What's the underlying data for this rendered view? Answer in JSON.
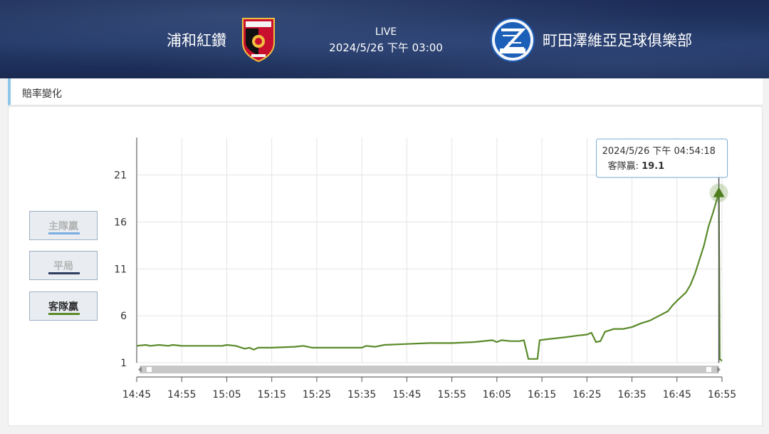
{
  "header": {
    "home_team": "浦和紅鑽",
    "away_team": "町田澤維亞足球俱樂部",
    "status": "LIVE",
    "match_time": "2024/5/26 下午 03:00",
    "home_logo_icon": "urawa-reds-crest-icon",
    "away_logo_icon": "machida-zelvia-crest-icon"
  },
  "panel": {
    "title": "賠率變化"
  },
  "legend": {
    "home": {
      "label": "主隊贏",
      "color": "#7aaee0",
      "active": false
    },
    "draw": {
      "label": "平局",
      "color": "#2e3d5c",
      "active": false
    },
    "away": {
      "label": "客隊贏",
      "color": "#5a8a2a",
      "active": true
    }
  },
  "tooltip": {
    "time": "2024/5/26 下午 04:54:18",
    "series": "客隊贏",
    "value": "19.1"
  },
  "chart_data": {
    "type": "line",
    "title": "",
    "xlabel": "",
    "ylabel": "",
    "x_ticks": [
      "14:45",
      "14:55",
      "15:05",
      "15:15",
      "15:25",
      "15:35",
      "15:45",
      "15:55",
      "16:05",
      "16:15",
      "16:25",
      "16:35",
      "16:45",
      "16:55"
    ],
    "y_ticks": [
      1,
      6,
      11,
      16,
      21
    ],
    "ylim": [
      1,
      25
    ],
    "xlim": [
      "14:45",
      "16:55"
    ],
    "grid": true,
    "series": [
      {
        "name": "客隊贏",
        "color": "#5a8a2a",
        "points": [
          [
            "14:45",
            2.8
          ],
          [
            "14:47",
            2.9
          ],
          [
            "14:48",
            2.8
          ],
          [
            "14:50",
            2.9
          ],
          [
            "14:52",
            2.8
          ],
          [
            "14:53",
            2.9
          ],
          [
            "14:55",
            2.8
          ],
          [
            "15:00",
            2.8
          ],
          [
            "15:04",
            2.8
          ],
          [
            "15:05",
            2.9
          ],
          [
            "15:07",
            2.8
          ],
          [
            "15:09",
            2.5
          ],
          [
            "15:10",
            2.6
          ],
          [
            "15:11",
            2.4
          ],
          [
            "15:12",
            2.6
          ],
          [
            "15:15",
            2.6
          ],
          [
            "15:20",
            2.7
          ],
          [
            "15:22",
            2.8
          ],
          [
            "15:24",
            2.6
          ],
          [
            "15:30",
            2.6
          ],
          [
            "15:35",
            2.6
          ],
          [
            "15:36",
            2.8
          ],
          [
            "15:38",
            2.7
          ],
          [
            "15:40",
            2.9
          ],
          [
            "15:45",
            3.0
          ],
          [
            "15:50",
            3.1
          ],
          [
            "15:55",
            3.1
          ],
          [
            "16:00",
            3.2
          ],
          [
            "16:04",
            3.4
          ],
          [
            "16:05",
            3.2
          ],
          [
            "16:06",
            3.4
          ],
          [
            "16:08",
            3.3
          ],
          [
            "16:10",
            3.3
          ],
          [
            "16:11",
            3.4
          ],
          [
            "16:12",
            1.4
          ],
          [
            "16:14",
            1.4
          ],
          [
            "16:14.5",
            3.4
          ],
          [
            "16:16",
            3.5
          ],
          [
            "16:20",
            3.7
          ],
          [
            "16:23",
            3.9
          ],
          [
            "16:25",
            4.0
          ],
          [
            "16:26",
            4.2
          ],
          [
            "16:27",
            3.2
          ],
          [
            "16:28",
            3.3
          ],
          [
            "16:29",
            4.3
          ],
          [
            "16:31",
            4.6
          ],
          [
            "16:33",
            4.6
          ],
          [
            "16:35",
            4.8
          ],
          [
            "16:37",
            5.2
          ],
          [
            "16:39",
            5.5
          ],
          [
            "16:41",
            6.0
          ],
          [
            "16:43",
            6.5
          ],
          [
            "16:44",
            7.1
          ],
          [
            "16:45",
            7.6
          ],
          [
            "16:47",
            8.5
          ],
          [
            "16:48",
            9.3
          ],
          [
            "16:49",
            10.5
          ],
          [
            "16:50",
            12.0
          ],
          [
            "16:51",
            13.5
          ],
          [
            "16:52",
            15.5
          ],
          [
            "16:53",
            17.0
          ],
          [
            "16:54:18",
            19.1
          ],
          [
            "16:54:30",
            1.4
          ],
          [
            "16:55",
            1.2
          ]
        ]
      }
    ],
    "marker": {
      "x": "16:54:18",
      "y": 19.1,
      "shape": "triangle"
    },
    "scrollbar": true
  }
}
